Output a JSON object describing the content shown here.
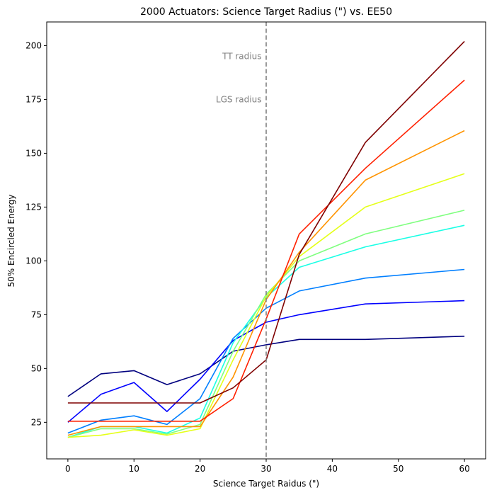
{
  "chart_data": {
    "type": "line",
    "title": "2000 Actuators: Science Target Radius (\") vs. EE50",
    "xlabel": "Science Target Raidus (\")",
    "ylabel": "50% Encircled Energy",
    "xlim": [
      -3.2,
      63.2
    ],
    "ylim": [
      8,
      211
    ],
    "xticks": [
      0,
      10,
      20,
      30,
      40,
      50,
      60
    ],
    "yticks": [
      25,
      50,
      75,
      100,
      125,
      150,
      175,
      200
    ],
    "grid": false,
    "x": [
      0,
      5,
      10,
      15,
      20,
      25,
      30,
      35,
      45,
      60
    ],
    "vline": {
      "x": 30,
      "color": "#808080",
      "style": "dashed"
    },
    "annotations": [
      {
        "text": "TT radius",
        "x": 29.3,
        "y": 195,
        "color": "#808080"
      },
      {
        "text": "LGS radius",
        "x": 29.3,
        "y": 175,
        "color": "#808080"
      }
    ],
    "series": [
      {
        "color": "#00007f",
        "values": [
          37,
          47.5,
          49,
          42.5,
          47.5,
          58,
          61,
          63.5,
          63.5,
          65
        ]
      },
      {
        "color": "#0000ff",
        "values": [
          25,
          38,
          43.5,
          30,
          45,
          63,
          71.5,
          75,
          80,
          81.5
        ]
      },
      {
        "color": "#007fff",
        "values": [
          20,
          26,
          28,
          24,
          36,
          64,
          78,
          86,
          92,
          96
        ]
      },
      {
        "color": "#19ffe5",
        "values": [
          18,
          23,
          23,
          20,
          27,
          62,
          83,
          97,
          106.5,
          116.5
        ]
      },
      {
        "color": "#7fff7f",
        "values": [
          18,
          22,
          22,
          19.5,
          24,
          58,
          84.5,
          100,
          112.5,
          123.5
        ]
      },
      {
        "color": "#e5ff19",
        "values": [
          18,
          19,
          21.5,
          19,
          22,
          54,
          83.5,
          102,
          125,
          140.5
        ]
      },
      {
        "color": "#ff9400",
        "values": [
          19,
          23,
          23,
          23,
          23,
          46,
          82,
          104,
          137.5,
          160.5
        ]
      },
      {
        "color": "#ff2000",
        "values": [
          25.5,
          25.5,
          25.5,
          25.5,
          25.5,
          36,
          73,
          112.5,
          143,
          184
        ]
      },
      {
        "color": "#7f0000",
        "values": [
          34,
          34,
          34,
          34,
          34,
          41,
          54,
          103,
          155,
          202
        ]
      }
    ]
  }
}
